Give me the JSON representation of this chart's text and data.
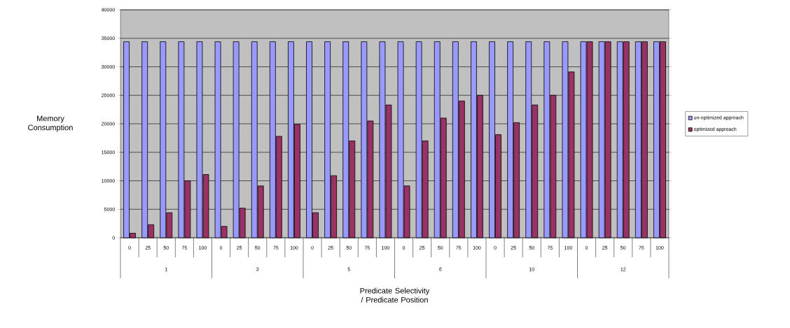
{
  "chart_data": {
    "type": "bar",
    "categories": [
      "0",
      "25",
      "50",
      "75",
      "100",
      "0",
      "25",
      "50",
      "75",
      "100",
      "0",
      "25",
      "50",
      "75",
      "100",
      "0",
      "25",
      "50",
      "75",
      "100",
      "0",
      "25",
      "50",
      "75",
      "100",
      "0",
      "25",
      "50",
      "75",
      "100"
    ],
    "series": [
      {
        "name": "un-optimized approach",
        "color": "#9999ff",
        "values": [
          34400,
          34400,
          34400,
          34400,
          34400,
          34400,
          34400,
          34400,
          34400,
          34400,
          34400,
          34400,
          34400,
          34400,
          34400,
          34400,
          34400,
          34400,
          34400,
          34400,
          34400,
          34400,
          34400,
          34400,
          34400,
          34400,
          34400,
          34400,
          34400,
          34400
        ]
      },
      {
        "name": "optimized approach",
        "color": "#993366",
        "values": [
          800,
          2300,
          4400,
          10000,
          11100,
          2000,
          5200,
          9100,
          17800,
          19900,
          4400,
          10900,
          17000,
          20500,
          23300,
          9100,
          17000,
          21000,
          24000,
          25000,
          18100,
          20200,
          23300,
          25000,
          29100,
          34400,
          34400,
          34400,
          34400,
          34400
        ]
      }
    ],
    "annotations": [
      "1",
      "3",
      "5",
      "8",
      "10",
      "12"
    ],
    "xlabel": "Predicate Selectivity / Predicate Position",
    "ylabel": "Memory Consumption",
    "ylim": [
      0,
      40000
    ],
    "yticks": [
      0,
      5000,
      10000,
      15000,
      20000,
      25000,
      30000,
      35000,
      40000
    ],
    "grid": "y",
    "legend": "right"
  }
}
